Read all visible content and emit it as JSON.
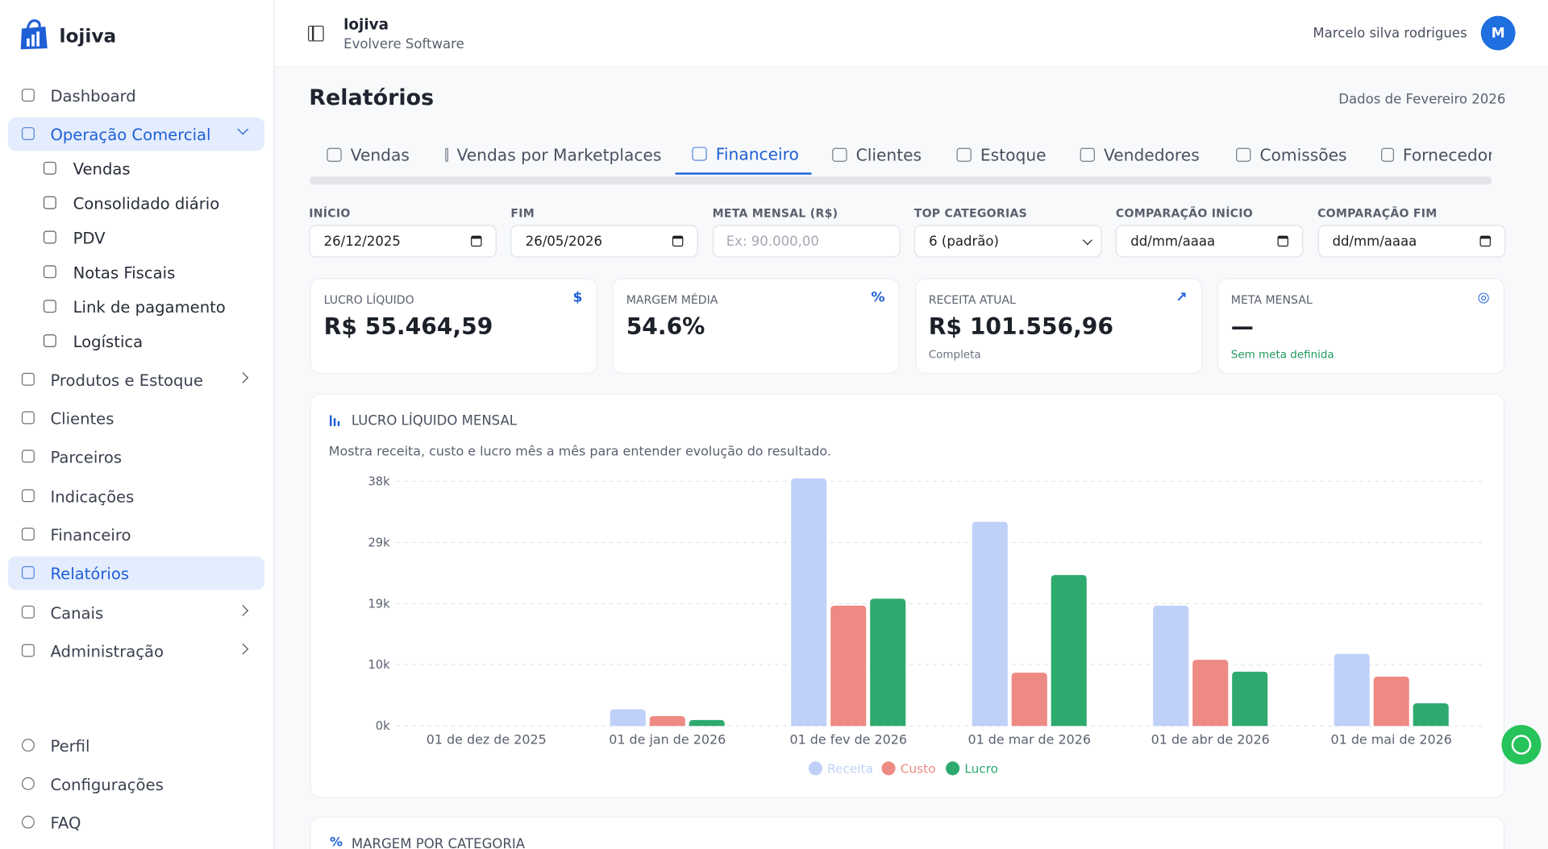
{
  "sidebar": {
    "brand": "lojiva",
    "items": [
      {
        "label": "Dashboard"
      },
      {
        "label": "Operação Comercial",
        "active": true,
        "expanded": true
      },
      {
        "label": "Vendas",
        "sub": true
      },
      {
        "label": "Consolidado diário",
        "sub": true
      },
      {
        "label": "PDV",
        "sub": true
      },
      {
        "label": "Notas Fiscais",
        "sub": true
      },
      {
        "label": "Link de pagamento",
        "sub": true
      },
      {
        "label": "Logística",
        "sub": true
      },
      {
        "label": "Produtos e Estoque",
        "expandable": true
      },
      {
        "label": "Clientes"
      },
      {
        "label": "Parceiros"
      },
      {
        "label": "Indicações"
      },
      {
        "label": "Financeiro"
      },
      {
        "label": "Relatórios",
        "active": true
      },
      {
        "label": "Canais",
        "expandable": true
      },
      {
        "label": "Administração",
        "expandable": true
      }
    ],
    "bottom": [
      {
        "label": "Perfil"
      },
      {
        "label": "Configurações"
      },
      {
        "label": "FAQ"
      }
    ]
  },
  "header": {
    "title": "lojiva",
    "subtitle": "Evolvere Software",
    "user": "Marcelo silva rodrigues",
    "avatar": "M"
  },
  "page": {
    "title": "Relatórios",
    "period": "Dados de Fevereiro 2026"
  },
  "tabs": [
    {
      "label": "Vendas"
    },
    {
      "label": "Vendas por Marketplaces"
    },
    {
      "label": "Financeiro",
      "active": true
    },
    {
      "label": "Clientes"
    },
    {
      "label": "Estoque"
    },
    {
      "label": "Vendedores"
    },
    {
      "label": "Comissões"
    },
    {
      "label": "Fornecedores"
    }
  ],
  "filters": [
    {
      "label": "INÍCIO",
      "value": "26/12/2025",
      "date": true
    },
    {
      "label": "FIM",
      "value": "26/05/2026",
      "date": true
    },
    {
      "label": "META MENSAL (R$)",
      "placeholder": "Ex: 90.000,00"
    },
    {
      "label": "TOP CATEGORIAS",
      "value": "6 (padrão)",
      "select": true
    },
    {
      "label": "COMPARAÇÃO INÍCIO",
      "value": "dd/mm/aaaa",
      "date": true
    },
    {
      "label": "COMPARAÇÃO FIM",
      "value": "dd/mm/aaaa",
      "date": true
    }
  ],
  "cards": [
    {
      "label": "LUCRO LÍQUIDO",
      "value": "R$ 55.464,59",
      "icon": "$"
    },
    {
      "label": "MARGEM MÉDIA",
      "value": "54.6%",
      "icon": "%"
    },
    {
      "label": "RECEITA ATUAL",
      "value": "R$ 101.556,96",
      "note": "Completa",
      "icon": "↗"
    },
    {
      "label": "META MENSAL",
      "value": "—",
      "note": "Sem meta definida",
      "note_color": "#1e9a5a",
      "icon": "◎"
    }
  ],
  "chart_data": {
    "type": "bar",
    "title": "LUCRO LÍQUIDO MENSAL",
    "subtitle": "Mostra receita, custo e lucro mês a mês para entender evolução do resultado.",
    "categories": [
      "01 de dez de 2025",
      "01 de jan de 2026",
      "01 de fev de 2026",
      "01 de mar de 2026",
      "01 de abr de 2026",
      "01 de mai de 2026"
    ],
    "series": [
      {
        "name": "Receita",
        "color": "#bfd1f9",
        "values": [
          0,
          2600,
          38460,
          31720,
          18690,
          11190
        ]
      },
      {
        "name": "Custo",
        "color": "#ee8a84",
        "values": [
          0,
          1530,
          18690,
          8270,
          10270,
          7660
        ]
      },
      {
        "name": "Lucro",
        "color": "#2eaa6e",
        "values": [
          0,
          920,
          19770,
          23440,
          8430,
          3520
        ]
      }
    ],
    "ylim": [
      0,
      38000
    ],
    "yticks": [
      {
        "value": 0,
        "label": "0k"
      },
      {
        "value": 9500,
        "label": "10k"
      },
      {
        "value": 19000,
        "label": "19k"
      },
      {
        "value": 28500,
        "label": "29k"
      },
      {
        "value": 38000,
        "label": "38k"
      }
    ],
    "grid": true,
    "legend": "bottom"
  },
  "next_section": {
    "title": "MARGEM POR CATEGORIA"
  }
}
